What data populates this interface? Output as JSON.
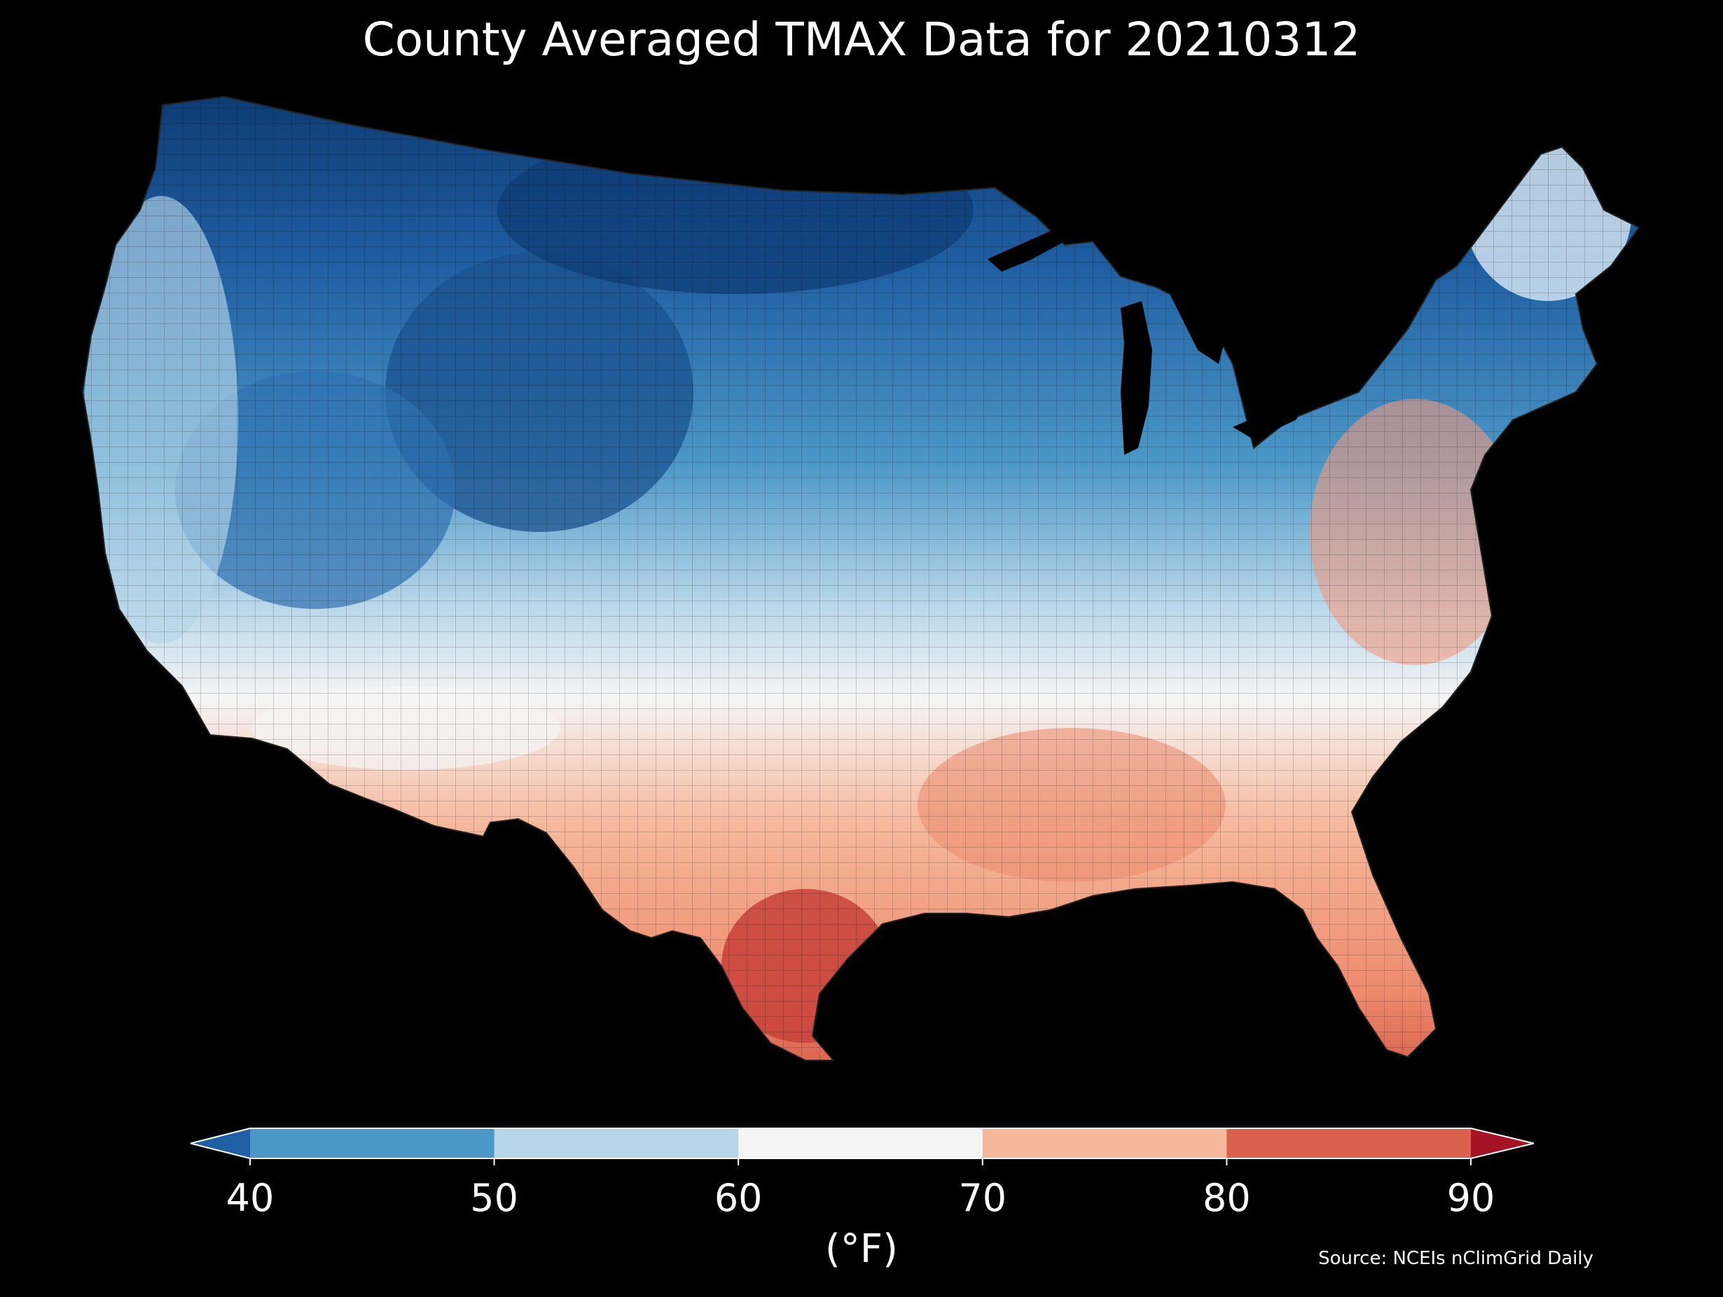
{
  "title": "County Averaged TMAX Data for 20210312",
  "colorbar": {
    "unit_label": "(°F)",
    "ticks": [
      "40",
      "50",
      "60",
      "70",
      "80",
      "90"
    ],
    "bins": [
      {
        "range": "<40",
        "color": "#1f5fa3"
      },
      {
        "range": "40-50",
        "color": "#4b98c8"
      },
      {
        "range": "50-60",
        "color": "#b6d5e8"
      },
      {
        "range": "60-70",
        "color": "#f5f5f5"
      },
      {
        "range": "70-80",
        "color": "#f6b89c"
      },
      {
        "range": "80-90",
        "color": "#d9614d"
      },
      {
        "range": ">90",
        "color": "#a41426"
      }
    ]
  },
  "source": "Source: NCEIs nClimGrid Daily",
  "map": {
    "region": "Contiguous United States",
    "variable": "TMAX",
    "pattern_colors": {
      "coldest": "#0d3b73",
      "very_cold": "#1f5fa3",
      "cold": "#4b98c8",
      "cool": "#b6d5e8",
      "mild": "#f5f5f5",
      "warm": "#f6b89c",
      "hot": "#d9614d"
    }
  }
}
